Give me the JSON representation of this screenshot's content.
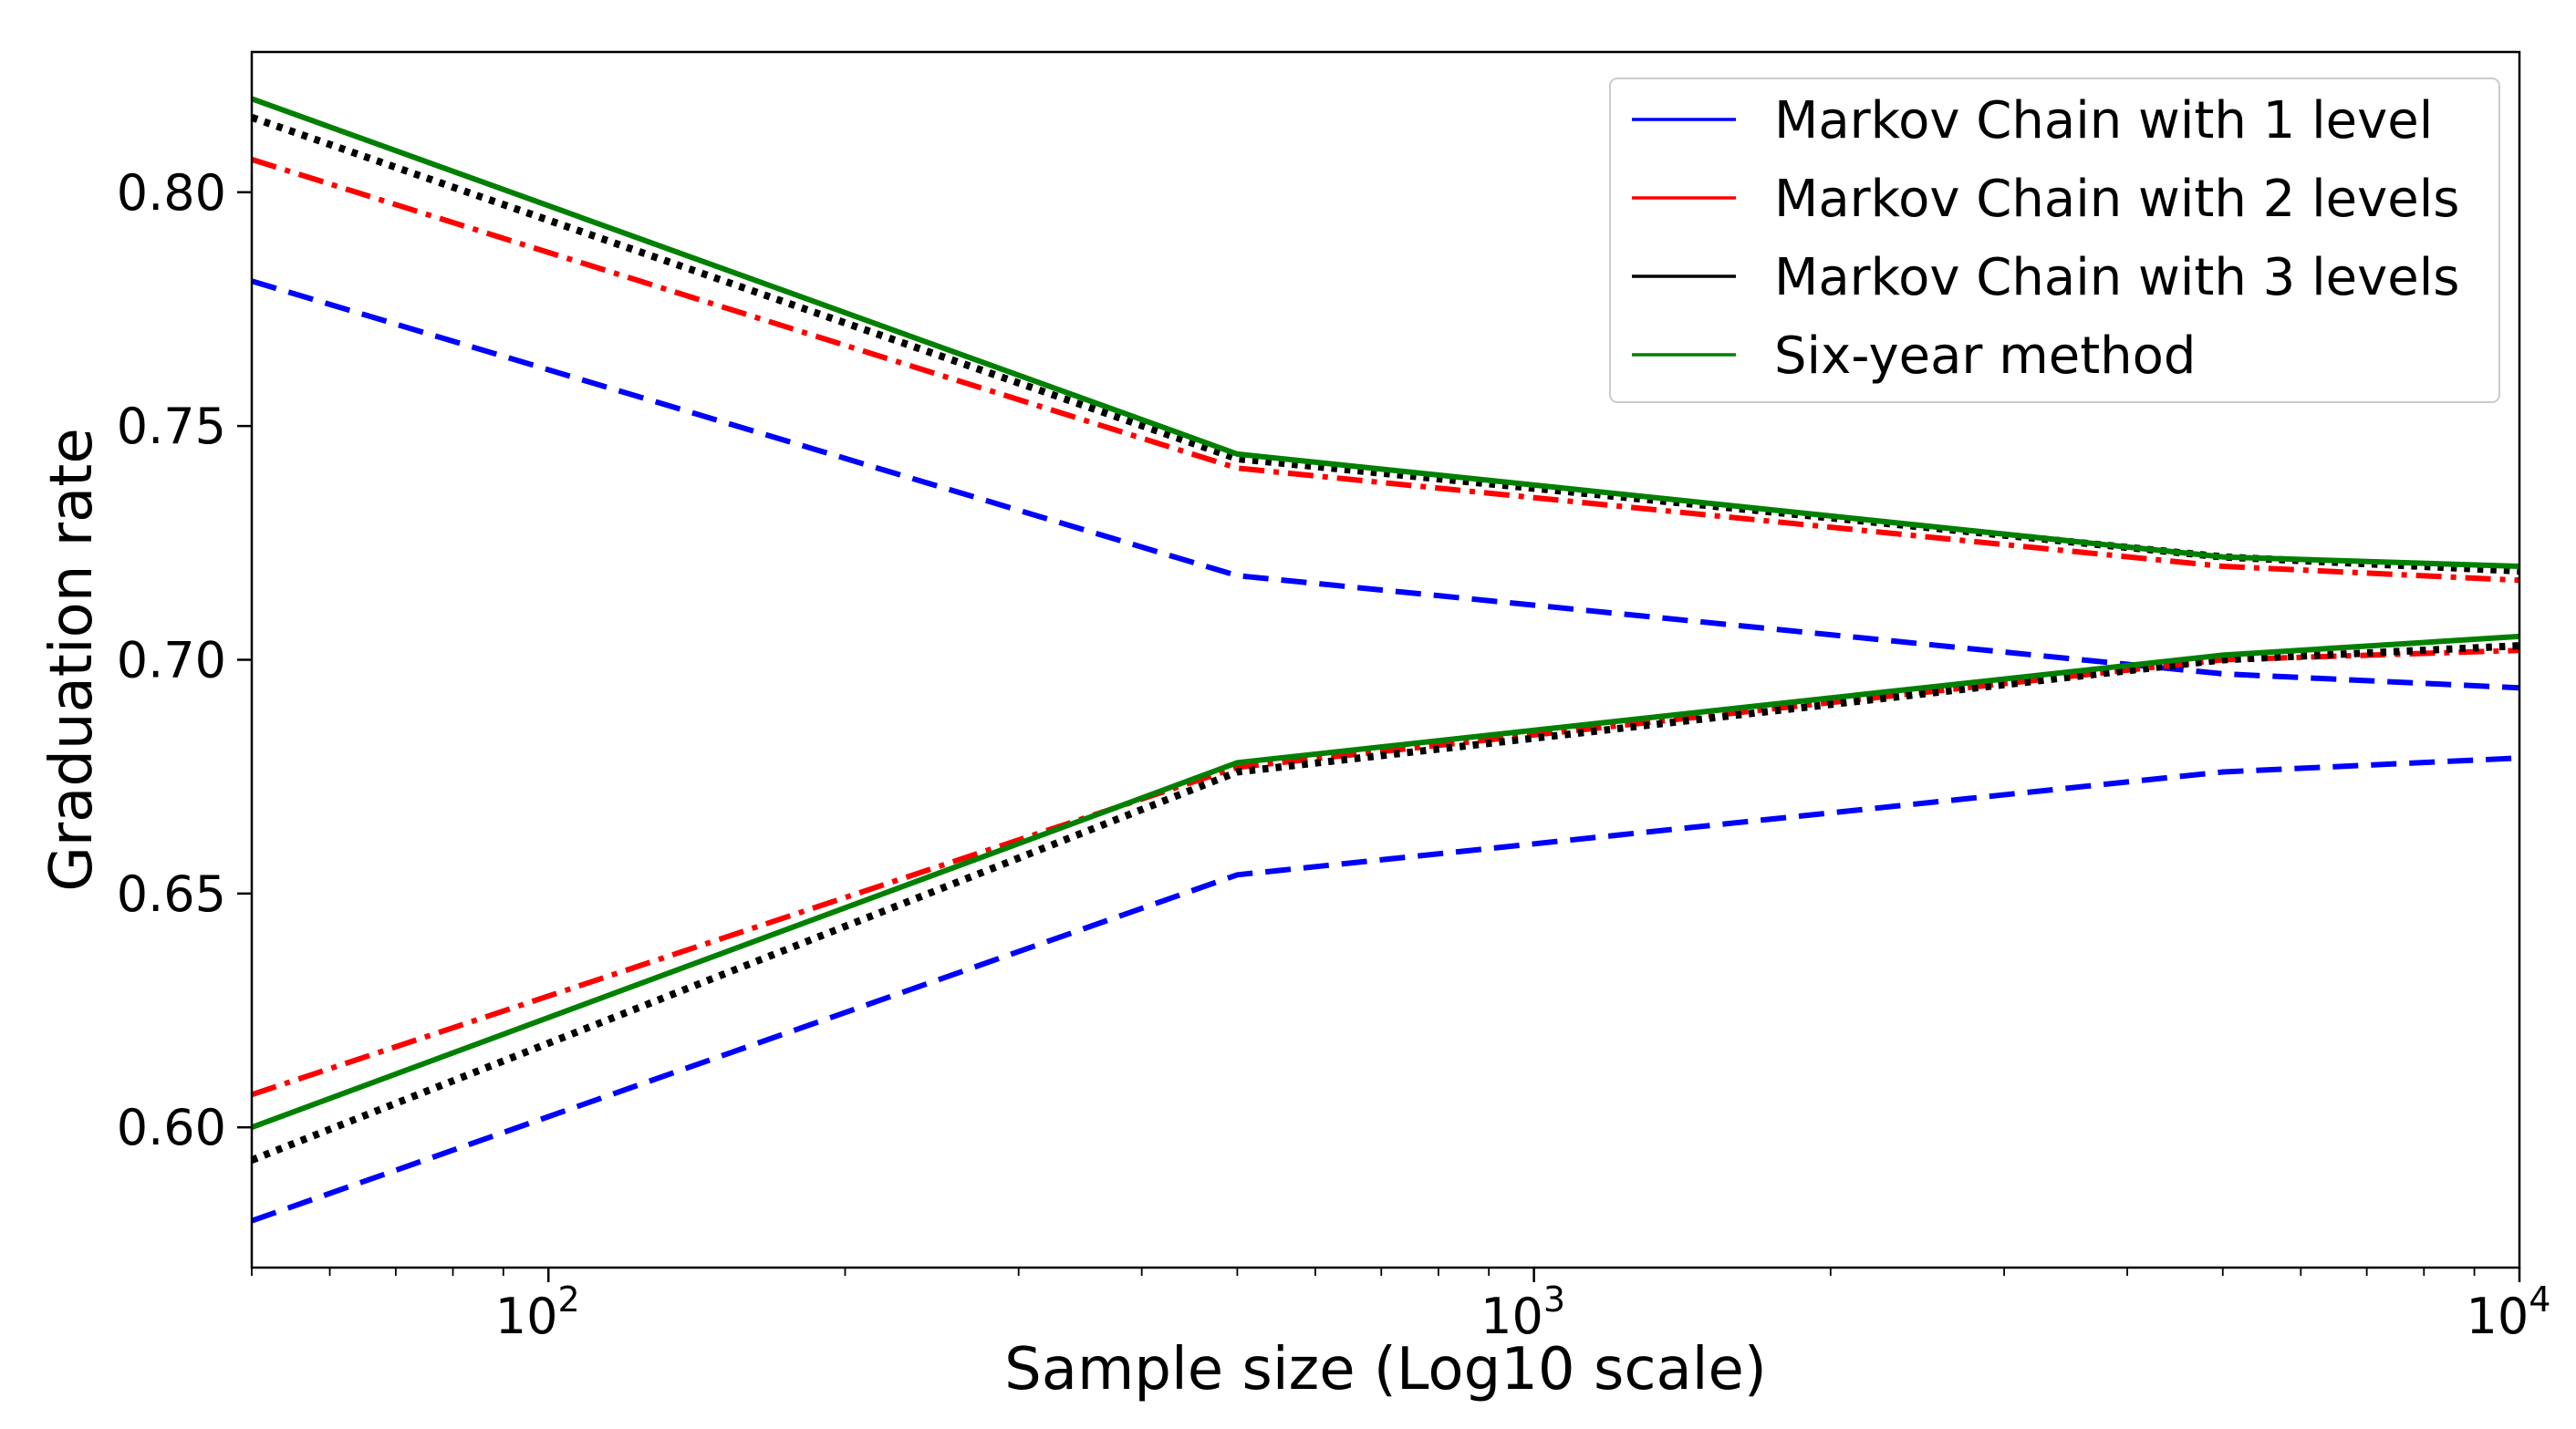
{
  "chart_data": {
    "type": "line",
    "xscale": "log",
    "xlabel": "Sample size (Log10 scale)",
    "ylabel": "Graduation rate",
    "xlim": [
      50,
      10000
    ],
    "ylim": [
      0.57,
      0.83
    ],
    "x": [
      50,
      500,
      5000,
      10000
    ],
    "yticks": [
      0.6,
      0.65,
      0.7,
      0.75,
      0.8
    ],
    "ytick_labels": [
      "0.60",
      "0.65",
      "0.70",
      "0.75",
      "0.80"
    ],
    "xticks": [
      {
        "value": 100,
        "base": "10",
        "exp": "2"
      },
      {
        "value": 1000,
        "base": "10",
        "exp": "3"
      },
      {
        "value": 10000,
        "base": "10",
        "exp": "4"
      }
    ],
    "legend_position": "top-right",
    "series": [
      {
        "name": "Markov Chain with 1 level",
        "color": "#0000ff",
        "style": "dashed",
        "upper": [
          0.781,
          0.718,
          0.697,
          0.694
        ],
        "lower": [
          0.58,
          0.654,
          0.676,
          0.679
        ]
      },
      {
        "name": "Markov Chain with 2 levels",
        "color": "#ff0000",
        "style": "dashdot",
        "upper": [
          0.807,
          0.741,
          0.72,
          0.717
        ],
        "lower": [
          0.607,
          0.677,
          0.7,
          0.702
        ]
      },
      {
        "name": "Markov Chain with 3 levels",
        "color": "#000000",
        "style": "dotted",
        "upper": [
          0.816,
          0.743,
          0.722,
          0.719
        ],
        "lower": [
          0.593,
          0.676,
          0.7,
          0.703
        ]
      },
      {
        "name": "Six-year method",
        "color": "#008000",
        "style": "solid",
        "upper": [
          0.82,
          0.744,
          0.722,
          0.72
        ],
        "lower": [
          0.6,
          0.678,
          0.701,
          0.705
        ]
      }
    ]
  }
}
